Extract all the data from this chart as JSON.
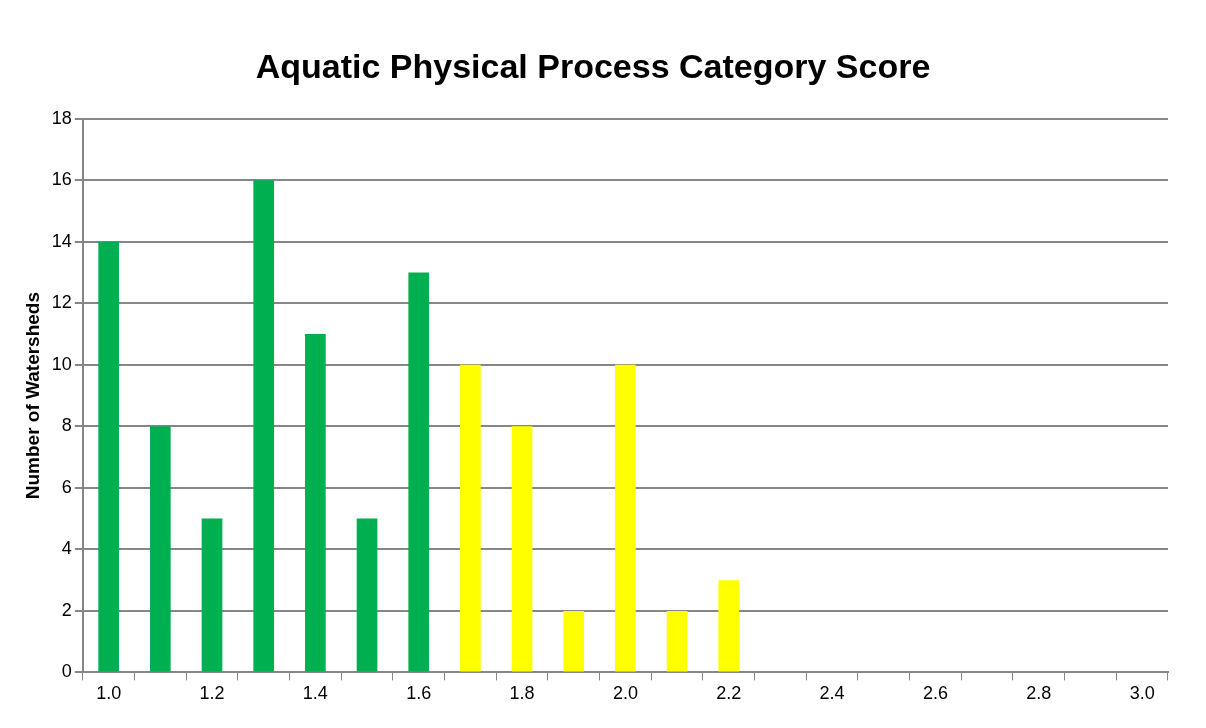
{
  "chart_data": {
    "type": "bar",
    "title": "Aquatic Physical Process Category Score",
    "ylabel": "Number of Watersheds",
    "categories": [
      "1.0",
      null,
      "1.2",
      null,
      "1.4",
      null,
      "1.6",
      null,
      "1.8",
      null,
      "2.0",
      null,
      "2.2",
      null,
      "2.4",
      null,
      "2.6",
      null,
      "2.8",
      null,
      "3.0"
    ],
    "values": [
      14,
      8,
      5,
      16,
      11,
      5,
      13,
      10,
      8,
      2,
      10,
      2,
      3,
      0,
      0,
      0,
      0,
      0,
      0,
      0,
      0
    ],
    "colors": [
      "#00b050",
      "#00b050",
      "#00b050",
      "#00b050",
      "#00b050",
      "#00b050",
      "#00b050",
      "#ffff00",
      "#ffff00",
      "#ffff00",
      "#ffff00",
      "#ffff00",
      "#ffff00",
      "#ffff00",
      "#ffff00",
      "#ffff00",
      "#ffff00",
      "#ffff00",
      "#ffff00",
      "#ffff00",
      "#ffff00"
    ],
    "ylim": [
      0,
      18
    ],
    "yticks": [
      0,
      2,
      4,
      6,
      8,
      10,
      12,
      14,
      16,
      18
    ],
    "grid": "y",
    "legend": false
  }
}
